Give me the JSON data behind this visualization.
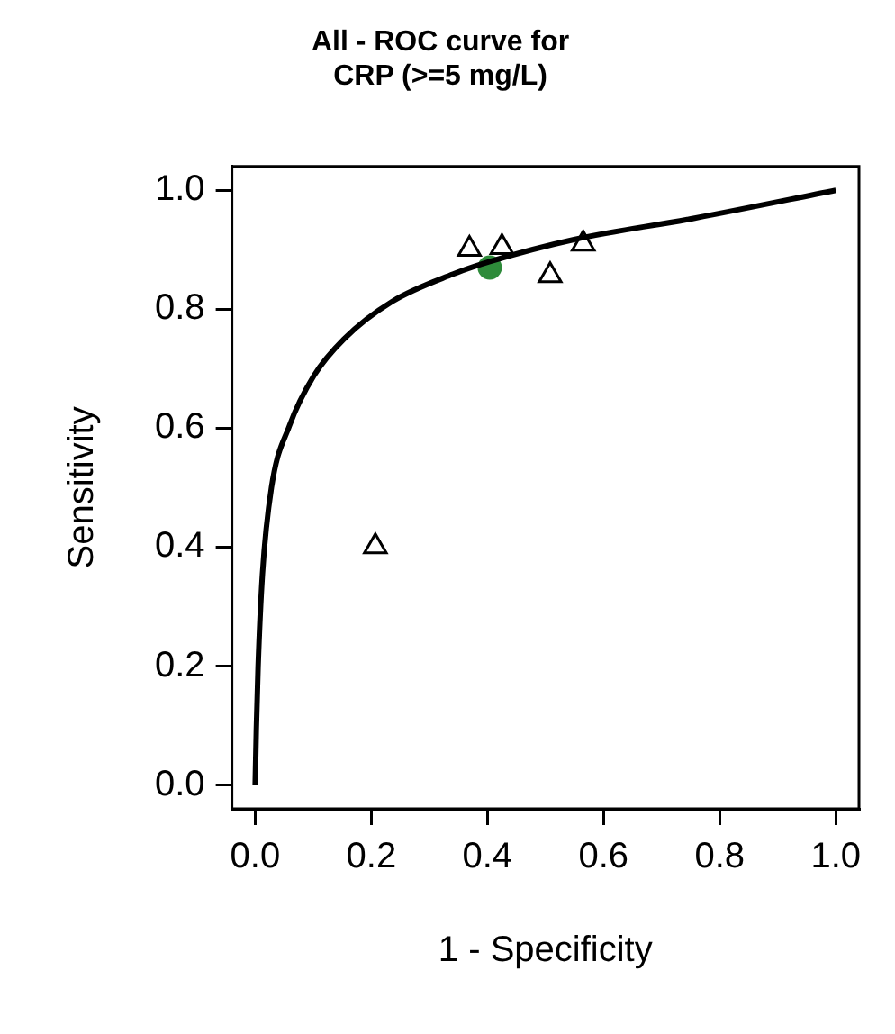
{
  "chart_data": {
    "type": "line",
    "title": "All - ROC curve for\nCRP (>=5 mg/L)",
    "xlabel": "1 - Specificity",
    "ylabel": "Sensitivity",
    "xlim": [
      -0.04,
      1.04
    ],
    "ylim": [
      -0.04,
      1.04
    ],
    "xticks": [
      {
        "value": 0,
        "label": "0.0"
      },
      {
        "value": 0.2,
        "label": "0.2"
      },
      {
        "value": 0.4,
        "label": "0.4"
      },
      {
        "value": 0.6,
        "label": "0.6"
      },
      {
        "value": 0.8,
        "label": "0.8"
      },
      {
        "value": 1,
        "label": "1.0"
      }
    ],
    "yticks": [
      {
        "value": 0,
        "label": "0.0"
      },
      {
        "value": 0.2,
        "label": "0.2"
      },
      {
        "value": 0.4,
        "label": "0.4"
      },
      {
        "value": 0.6,
        "label": "0.6"
      },
      {
        "value": 0.8,
        "label": "0.8"
      },
      {
        "value": 1,
        "label": "1.0"
      }
    ],
    "grid": false,
    "legend": false,
    "series": [
      {
        "color": "#000000",
        "marker": "none",
        "line_style": "solid",
        "x": [
          0,
          0.002,
          0.005,
          0.0125,
          0.028,
          0.059,
          0.101,
          0.153,
          0.236,
          0.341,
          0.404,
          0.549,
          0.757,
          1
        ],
        "values": [
          0,
          0.094,
          0.198,
          0.354,
          0.5,
          0.604,
          0.688,
          0.75,
          0.813,
          0.859,
          0.88,
          0.917,
          0.953,
          1
        ]
      },
      {
        "type": "scatter",
        "color": "#000000",
        "marker": "triangle",
        "x": [
          0.369,
          0.425,
          0.565,
          0.508,
          0.207
        ],
        "values": [
          0.901,
          0.904,
          0.91,
          0.857,
          0.401
        ]
      },
      {
        "type": "scatter",
        "color": "#2e8b3a",
        "marker": "circle",
        "x": [
          0.404
        ],
        "values": [
          0.87
        ]
      }
    ]
  }
}
